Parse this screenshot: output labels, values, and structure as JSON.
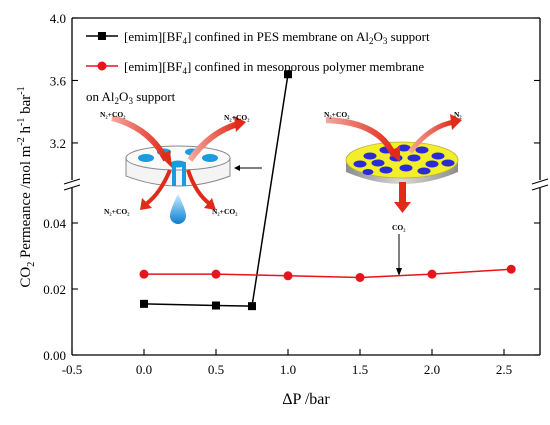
{
  "chart_data": {
    "type": "line",
    "xlabel": "ΔP /bar",
    "ylabel": "CO₂ Permeance /mol m⁻² h⁻¹ bar⁻¹",
    "xlim": [
      -0.5,
      2.75
    ],
    "x_ticks": [
      "-0.5",
      "0.0",
      "0.5",
      "1.0",
      "1.5",
      "2.0",
      "2.5"
    ],
    "y_axis_break": true,
    "lower_ylim": [
      0.0,
      0.05
    ],
    "lower_y_ticks": [
      "0.00",
      "0.02",
      "0.04"
    ],
    "upper_ylim": [
      2.95,
      4.0
    ],
    "upper_y_ticks": [
      "3.2",
      "3.6",
      "4.0"
    ],
    "series": [
      {
        "name": "[emim][BF4] confined in PES membrane on Al2O3 support",
        "color": "#000000",
        "marker": "square",
        "x": [
          0.0,
          0.5,
          0.75,
          1.0
        ],
        "y": [
          0.0155,
          0.015,
          0.0148,
          3.64
        ]
      },
      {
        "name": "[emim][BF4] confined in mesoporous polymer membrane on Al2O3 support",
        "color": "#e8141b",
        "marker": "circle",
        "x": [
          0.0,
          0.5,
          1.0,
          1.5,
          2.0,
          2.55
        ],
        "y": [
          0.0245,
          0.0245,
          0.024,
          0.0235,
          0.0245,
          0.026
        ]
      }
    ],
    "legend": {
      "entries": [
        {
          "pre": "[emim][BF",
          "sub": "4",
          "mid": "] confined in PES membrane on Al",
          "sub2": "2",
          "o": "O",
          "sub3": "3",
          "post": " support"
        },
        {
          "pre": "[emim][BF",
          "sub": "4",
          "mid": "] confined in mesoporous polymer membrane",
          "sub2": "",
          "o": "",
          "sub3": "",
          "post": ""
        }
      ],
      "continuation": {
        "pre": "on Al",
        "sub": "2",
        "o": "O",
        "sub2": "3",
        "post": " support"
      }
    },
    "annotations": {
      "left_in": "N₂+CO₂",
      "left_out": "N₂+CO₂",
      "left_bottom_left": "N₂+CO₂",
      "left_bottom_right": "N₂+CO₂",
      "right_in": "N₂+CO₂",
      "right_out": "N₂",
      "right_bottom": "CO₂"
    },
    "colors": {
      "arrow_red": "#e02a1a",
      "disc_blue": "#1a9be0",
      "disc_yellow": "#f2ee2a",
      "pore_blue": "#2a2ad8"
    }
  }
}
